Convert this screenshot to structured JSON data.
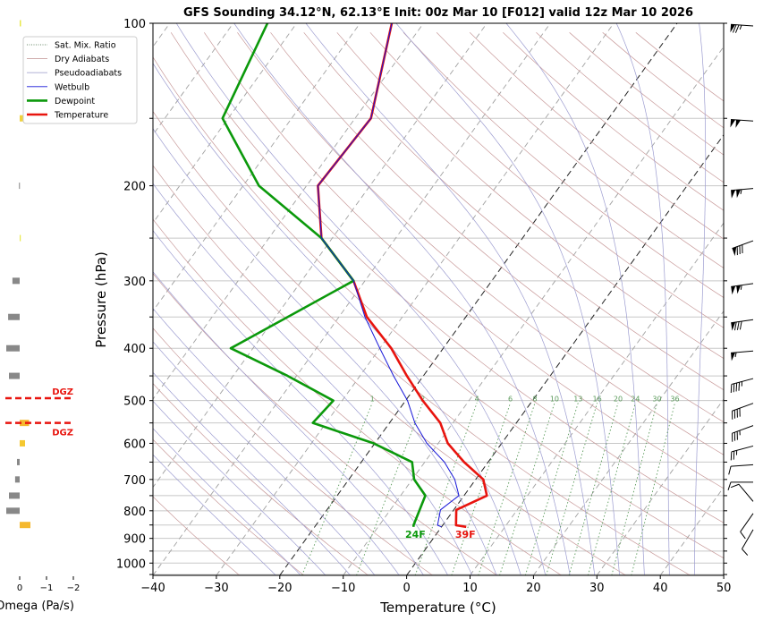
{
  "chart_data": {
    "type": "line",
    "subtype": "skew-t",
    "title": "GFS Sounding 34.12°N, 62.13°E Init: 00z Mar 10 [F012] valid 12z Mar 10 2026",
    "xlabel": "Temperature (°C)",
    "ylabel": "Pressure (hPa)",
    "xlim": [
      -40,
      50
    ],
    "ylim": [
      1054,
      100
    ],
    "xticks": [
      -40,
      -30,
      -20,
      -10,
      0,
      10,
      20,
      30,
      40,
      50
    ],
    "xtick_labels": [
      "−40",
      "−30",
      "−20",
      "−10",
      "0",
      "10",
      "20",
      "30",
      "40",
      "50"
    ],
    "yticks": [
      100,
      200,
      300,
      400,
      500,
      600,
      700,
      800,
      900,
      1000
    ],
    "ytick_labels": [
      "100",
      "200",
      "300",
      "400",
      "500",
      "600",
      "700",
      "800",
      "900",
      "1000"
    ],
    "yminor_ticks": [
      150,
      250,
      350,
      450,
      550,
      650,
      750,
      850,
      950,
      1050
    ],
    "grid": true,
    "special_isotherms": [
      -20,
      0
    ],
    "mixing_ratio_labels": [
      "1",
      "2",
      "4",
      "6",
      "8",
      "10",
      "13",
      "16",
      "20",
      "24",
      "30",
      "36"
    ],
    "mixing_ratio_values": [
      1,
      2,
      4,
      6,
      8,
      10,
      13,
      16,
      20,
      24,
      30,
      36
    ],
    "series": [
      {
        "name": "Temperature",
        "color": "#e8140e",
        "p": [
          100,
          150,
          200,
          250,
          300,
          350,
          400,
          450,
          500,
          550,
          600,
          650,
          700,
          750,
          797,
          851,
          857
        ],
        "T": [
          -65,
          -57.5,
          -58.2,
          -51.7,
          -41.8,
          -35.6,
          -28.2,
          -22.6,
          -17.3,
          -12,
          -8.5,
          -3.8,
          1.2,
          3.6,
          0.4,
          2.1,
          3.9
        ]
      },
      {
        "name": "Dewpoint",
        "color": "#0b990b",
        "p": [
          100,
          150,
          200,
          250,
          300,
          400,
          450,
          500,
          550,
          600,
          650,
          700,
          750,
          851,
          857
        ],
        "T": [
          -84.6,
          -80.9,
          -67.5,
          -51.7,
          -41.8,
          -53.5,
          -41.4,
          -31.4,
          -32.1,
          -20.2,
          -12,
          -9.7,
          -6.1,
          -4.6,
          -4.4
        ]
      },
      {
        "name": "Wetbulb",
        "color": "#1515d8",
        "p": [
          100,
          150,
          200,
          250,
          300,
          350,
          400,
          450,
          500,
          550,
          600,
          650,
          700,
          750,
          797,
          851,
          857
        ],
        "T": [
          -65,
          -57.5,
          -58.2,
          -51.7,
          -41.8,
          -35.9,
          -30,
          -24.7,
          -19.7,
          -16,
          -11.8,
          -6.9,
          -3.3,
          -0.8,
          -2.1,
          -0.8,
          0
        ]
      }
    ],
    "legend": {
      "position": "upper-left",
      "entries": [
        {
          "label": "Sat. Mix. Ratio",
          "style": "dotted",
          "color": "#6a8a6a"
        },
        {
          "label": "Dry Adiabats",
          "style": "thin",
          "color": "#c8a0a0"
        },
        {
          "label": "Pseudoadiabats",
          "style": "thin",
          "color": "#a8a8d0"
        },
        {
          "label": "Wetbulb",
          "style": "thin",
          "color": "#1515d8"
        },
        {
          "label": "Dewpoint",
          "style": "thick",
          "color": "#0b990b"
        },
        {
          "label": "Temperature",
          "style": "thick",
          "color": "#e8140e"
        }
      ]
    },
    "surface_labels": {
      "dewpoint": "24F",
      "temperature": "39F"
    },
    "winds": [
      {
        "p": 100,
        "dir": 274,
        "speed_kt": 75
      },
      {
        "p": 150,
        "dir": 274,
        "speed_kt": 100
      },
      {
        "p": 200,
        "dir": 265,
        "speed_kt": 105
      },
      {
        "p": 250,
        "dir": 250,
        "speed_kt": 80
      },
      {
        "p": 300,
        "dir": 262,
        "speed_kt": 105
      },
      {
        "p": 350,
        "dir": 262,
        "speed_kt": 80
      },
      {
        "p": 400,
        "dir": 265,
        "speed_kt": 55
      },
      {
        "p": 450,
        "dir": 255,
        "speed_kt": 45
      },
      {
        "p": 500,
        "dir": 250,
        "speed_kt": 40
      },
      {
        "p": 550,
        "dir": 250,
        "speed_kt": 35
      },
      {
        "p": 600,
        "dir": 255,
        "speed_kt": 25
      },
      {
        "p": 650,
        "dir": 266,
        "speed_kt": 10
      },
      {
        "p": 700,
        "dir": 270,
        "speed_kt": 10
      },
      {
        "p": 760,
        "dir": 320,
        "speed_kt": 10
      },
      {
        "p": 800,
        "dir": 215,
        "speed_kt": 10
      },
      {
        "p": 857,
        "dir": 210,
        "speed_kt": 10
      }
    ],
    "omega": {
      "xlabel": "Omega (Pa/s)",
      "ticks": [
        0,
        -1,
        -2
      ],
      "tick_labels": [
        "0",
        "−1",
        "−2"
      ],
      "values": [
        {
          "p": 100,
          "omega": -0.05,
          "color": "#e8e84a"
        },
        {
          "p": 150,
          "omega": -0.12,
          "color": "#f0d23a"
        },
        {
          "p": 200,
          "omega": 0.03,
          "color": "#999999"
        },
        {
          "p": 250,
          "omega": -0.04,
          "color": "#e8e84a"
        },
        {
          "p": 300,
          "omega": 0.27,
          "color": "#888888"
        },
        {
          "p": 350,
          "omega": 0.43,
          "color": "#888888"
        },
        {
          "p": 400,
          "omega": 0.5,
          "color": "#888888"
        },
        {
          "p": 450,
          "omega": 0.4,
          "color": "#888888"
        },
        {
          "p": 550,
          "omega": -0.35,
          "color": "#f5b82e"
        },
        {
          "p": 600,
          "omega": -0.2,
          "color": "#f5c830"
        },
        {
          "p": 650,
          "omega": 0.1,
          "color": "#888888"
        },
        {
          "p": 700,
          "omega": 0.17,
          "color": "#888888"
        },
        {
          "p": 750,
          "omega": 0.4,
          "color": "#888888"
        },
        {
          "p": 800,
          "omega": 0.5,
          "color": "#888888"
        },
        {
          "p": 850,
          "omega": -0.4,
          "color": "#f5b82e"
        }
      ]
    },
    "dgz": {
      "top_p": 495,
      "bottom_p": 550,
      "label": "DGZ",
      "color": "#e8140e"
    }
  }
}
